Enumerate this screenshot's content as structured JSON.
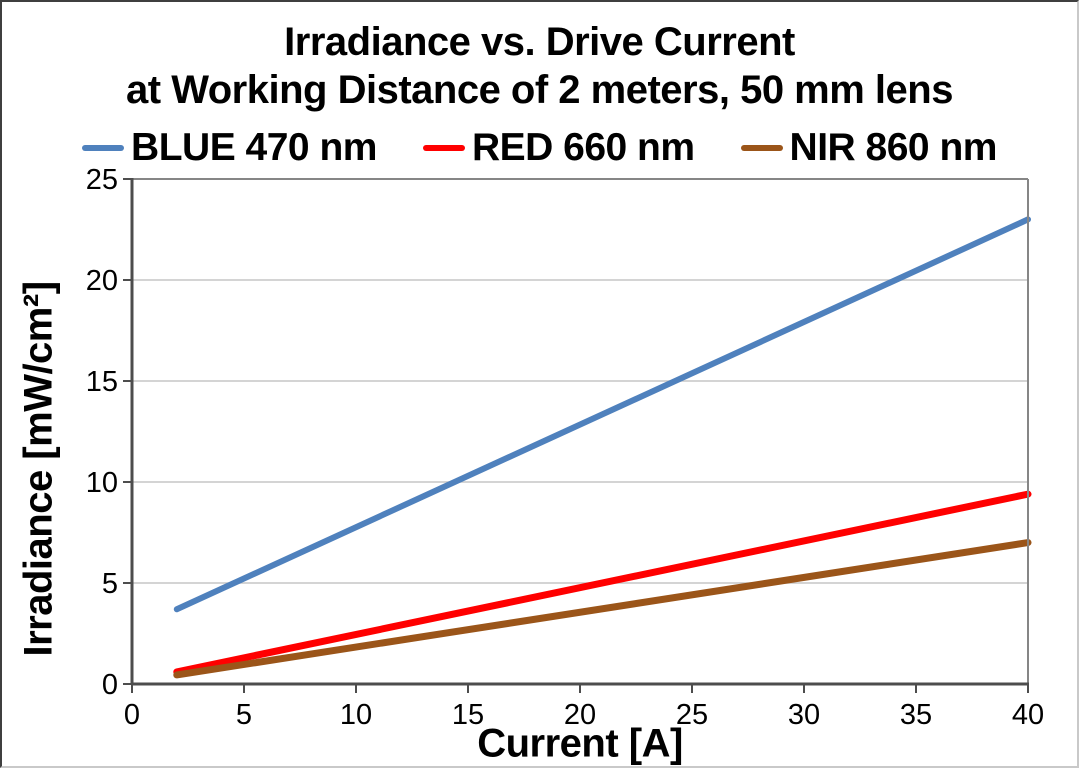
{
  "header": {
    "title_line1": "Irradiance vs. Drive Current",
    "title_line2": "at Working Distance of 2 meters, 50 mm lens"
  },
  "axes": {
    "x_title": "Current [A]",
    "y_title": "Irradiance [mW/cm²]"
  },
  "colors": {
    "gridline": "#c6c6c6",
    "axis_main": "#4d4d4d",
    "plot_border": "#868686",
    "text": "#000000"
  },
  "chart_data": {
    "type": "line",
    "title": "Irradiance vs. Drive Current at Working Distance of 2 meters, 50 mm lens",
    "xlabel": "Current [A]",
    "ylabel": "Irradiance [mW/cm²]",
    "xlim": [
      0,
      40
    ],
    "ylim": [
      0,
      25
    ],
    "xticks": [
      0,
      5,
      10,
      15,
      20,
      25,
      30,
      35,
      40
    ],
    "yticks": [
      0,
      5,
      10,
      15,
      20,
      25
    ],
    "grid": "horizontal-only",
    "legend_position": "top",
    "series": [
      {
        "name": "BLUE 470 nm",
        "color": "#4f81bd",
        "stroke_width": 6,
        "x": [
          2,
          40
        ],
        "y": [
          3.7,
          23.0
        ]
      },
      {
        "name": "RED 660 nm",
        "color": "#ff0000",
        "stroke_width": 7,
        "x": [
          2,
          40
        ],
        "y": [
          0.6,
          9.4
        ]
      },
      {
        "name": "NIR 860 nm",
        "color": "#9b5519",
        "stroke_width": 7,
        "x": [
          2,
          40
        ],
        "y": [
          0.45,
          7.0
        ]
      }
    ]
  }
}
